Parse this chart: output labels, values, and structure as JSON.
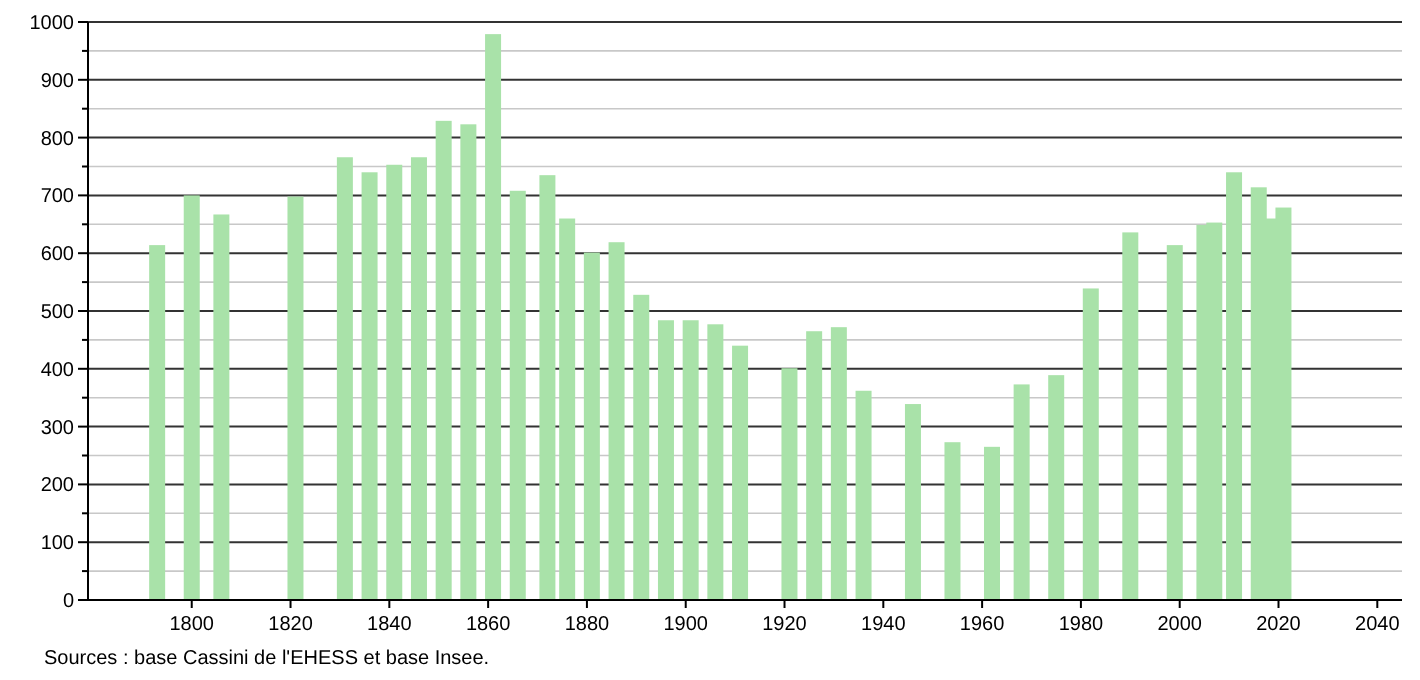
{
  "chart_data": {
    "type": "bar",
    "x": [
      1793,
      1800,
      1806,
      1821,
      1831,
      1836,
      1841,
      1846,
      1851,
      1856,
      1861,
      1866,
      1872,
      1876,
      1881,
      1886,
      1891,
      1896,
      1901,
      1906,
      1911,
      1921,
      1926,
      1931,
      1936,
      1946,
      1954,
      1962,
      1968,
      1975,
      1982,
      1990,
      1999,
      2005,
      2007,
      2011,
      2016,
      2019,
      2021
    ],
    "values": [
      614,
      700,
      667,
      698,
      766,
      740,
      753,
      766,
      829,
      823,
      979,
      708,
      735,
      660,
      601,
      619,
      528,
      484,
      484,
      477,
      440,
      401,
      465,
      472,
      362,
      339,
      273,
      265,
      373,
      389,
      539,
      636,
      614,
      649,
      653,
      740,
      714,
      660,
      679
    ],
    "color": "#a9e2a9",
    "xlim": [
      1779,
      2045
    ],
    "xticks": [
      1800,
      1820,
      1840,
      1860,
      1880,
      1900,
      1920,
      1940,
      1960,
      1980,
      2000,
      2020,
      2040
    ],
    "ylim": [
      0,
      1000
    ],
    "yticks": [
      0,
      {
        "value": 50,
        "label": null
      },
      100,
      {
        "value": 150,
        "label": null
      },
      200,
      {
        "value": 250,
        "label": null
      },
      300,
      {
        "value": 350,
        "label": null
      },
      400,
      {
        "value": 450,
        "label": null
      },
      500,
      {
        "value": 550,
        "label": null
      },
      600,
      {
        "value": 650,
        "label": null
      },
      700,
      {
        "value": 750,
        "label": null
      },
      800,
      {
        "value": 850,
        "label": null
      },
      900,
      {
        "value": 950,
        "label": null
      },
      1000
    ],
    "grid": true,
    "annotations": [
      "Sources : base Cassini de l'EHESS et base Insee."
    ]
  }
}
